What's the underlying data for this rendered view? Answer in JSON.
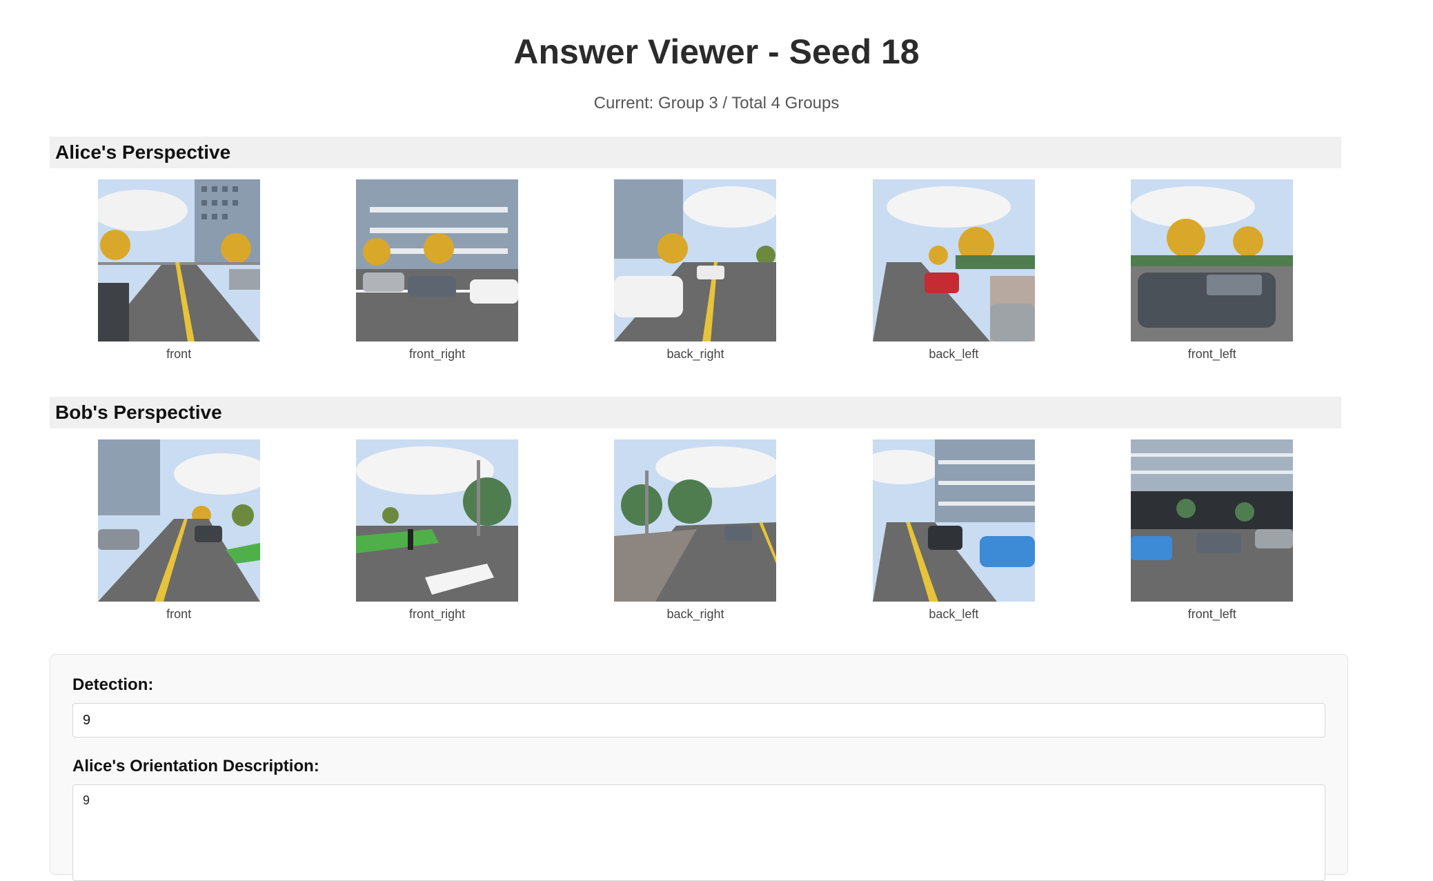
{
  "page": {
    "title": "Answer Viewer - Seed 18",
    "status": "Current: Group 3 / Total 4 Groups"
  },
  "alice": {
    "heading": "Alice's Perspective",
    "images": [
      {
        "label": "front",
        "icon": "street-view-photo"
      },
      {
        "label": "front_right",
        "icon": "street-view-photo"
      },
      {
        "label": "back_right",
        "icon": "street-view-photo"
      },
      {
        "label": "back_left",
        "icon": "street-view-photo"
      },
      {
        "label": "front_left",
        "icon": "street-view-photo"
      }
    ]
  },
  "bob": {
    "heading": "Bob's Perspective",
    "images": [
      {
        "label": "front",
        "icon": "street-view-photo"
      },
      {
        "label": "front_right",
        "icon": "street-view-photo"
      },
      {
        "label": "back_right",
        "icon": "street-view-photo"
      },
      {
        "label": "back_left",
        "icon": "street-view-photo"
      },
      {
        "label": "front_left",
        "icon": "street-view-photo"
      }
    ]
  },
  "answers": {
    "detection_label": "Detection:",
    "detection_value": "9",
    "alice_orientation_label": "Alice's Orientation Description:",
    "alice_orientation_value": "9"
  },
  "colors": {
    "sky": "#bcd4f0",
    "cloud": "#f4f4f4",
    "road": "#6a6a6a",
    "lane": "#e6c33a",
    "tree": "#d9a82a",
    "building": "#8a9cae"
  }
}
